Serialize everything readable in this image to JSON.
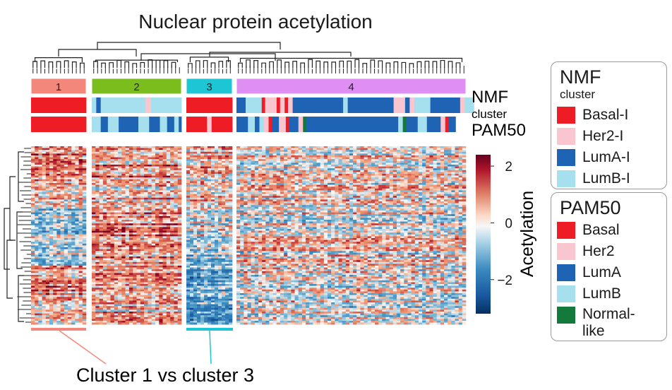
{
  "chart_data": {
    "type": "heatmap",
    "title": "Nuclear protein acetylation",
    "annotation_rows": [
      "NMF cluster",
      "PAM50"
    ],
    "nmf_cluster_labels": [
      "1",
      "2",
      "3",
      "4"
    ],
    "colorbar": {
      "label": "Acetylation",
      "ticks": [
        2,
        0,
        -2
      ],
      "range": [
        -3.2,
        2.4
      ],
      "colors": [
        "#053061",
        "#2166ac",
        "#4393c3",
        "#92c5de",
        "#f7f7f7",
        "#f4a582",
        "#d6604d",
        "#b2182b",
        "#67001f"
      ]
    },
    "clusters": [
      {
        "label": "1",
        "color": "#f4877b",
        "nmf": [
          [
            "Basal-I",
            1
          ]
        ],
        "pam50": [
          [
            "Basal",
            1
          ]
        ]
      },
      {
        "label": "2",
        "color": "#7cbd1e",
        "nmf": [
          [
            "LumB-I",
            0.05
          ],
          [
            "LumA-I",
            0.05
          ],
          [
            "LumB-I",
            0.5
          ],
          [
            "Her2-I",
            0.06
          ],
          [
            "LumB-I",
            0.34
          ]
        ],
        "pam50": [
          [
            "LumB",
            0.1
          ],
          [
            "LumA",
            0.08
          ],
          [
            "LumB",
            0.12
          ],
          [
            "LumA",
            0.22
          ],
          [
            "LumB",
            0.12
          ],
          [
            "LumA",
            0.12
          ],
          [
            "LumB",
            0.08
          ],
          [
            "LumA",
            0.08
          ],
          [
            "LumB",
            0.05
          ],
          [
            "LumA",
            0.03
          ]
        ]
      },
      {
        "label": "3",
        "color": "#1cc6d4",
        "nmf": [
          [
            "Basal-I",
            1
          ]
        ],
        "pam50": [
          [
            "Basal",
            0.45
          ],
          [
            "Her2",
            0.1
          ],
          [
            "Basal",
            0.45
          ]
        ]
      },
      {
        "label": "4",
        "color": "#df8ef4",
        "nmf": [
          [
            "LumA-I",
            0.04
          ],
          [
            "LumB-I",
            0.07
          ],
          [
            "Basal-I",
            0.015
          ],
          [
            "Her2-I",
            0.05
          ],
          [
            "Basal-I",
            0.015
          ],
          [
            "Her2-I",
            0.02
          ],
          [
            "Basal-I",
            0.015
          ],
          [
            "Her2-I",
            0.02
          ],
          [
            "LumA-I",
            0.22
          ],
          [
            "LumB-I",
            0.02
          ],
          [
            "LumA-I",
            0.2
          ],
          [
            "Her2-I",
            0.05
          ],
          [
            "LumA-I",
            0.02
          ],
          [
            "Her2-I",
            0.02
          ],
          [
            "LumB-I",
            0.07
          ],
          [
            "LumA-I",
            0.13
          ],
          [
            "Her2-I",
            0.02
          ],
          [
            "LumB-I",
            0.04
          ]
        ],
        "pam50": [
          [
            "LumA",
            0.05
          ],
          [
            "LumB",
            0.03
          ],
          [
            "LumA",
            0.02
          ],
          [
            "LumB",
            0.02
          ],
          [
            "Her2",
            0.02
          ],
          [
            "Basal",
            0.015
          ],
          [
            "LumA",
            0.03
          ],
          [
            "Her2",
            0.03
          ],
          [
            "Basal",
            0.015
          ],
          [
            "LumA",
            0.04
          ],
          [
            "Her2",
            0.02
          ],
          [
            "Normal-like",
            0.015
          ],
          [
            "LumA",
            0.4
          ],
          [
            "LumB",
            0.02
          ],
          [
            "Normal-like",
            0.015
          ],
          [
            "LumA",
            0.05
          ],
          [
            "LumB",
            0.04
          ],
          [
            "LumA",
            0.06
          ],
          [
            "Her2",
            0.02
          ],
          [
            "Basal",
            0.015
          ],
          [
            "LumA",
            0.03
          ]
        ]
      }
    ],
    "cluster_bands": [
      {
        "cluster": "1",
        "profile": [
          0.9,
          0.6,
          -0.6,
          -0.4,
          1.0,
          0.5
        ]
      },
      {
        "cluster": "2",
        "profile": [
          1.0,
          0.5,
          1.2,
          0.9,
          1.0,
          0.6
        ]
      },
      {
        "cluster": "3",
        "profile": [
          0.5,
          0.3,
          -0.2,
          -0.6,
          -1.3,
          -1.6
        ]
      },
      {
        "cluster": "4",
        "profile": [
          0.0,
          0.2,
          0.0,
          0.1,
          0.0,
          -0.1
        ]
      }
    ],
    "comparison_label": "Cluster 1 vs cluster 3"
  },
  "legend_nmf": {
    "title": "NMF",
    "subtitle": "cluster",
    "items": [
      {
        "label": "Basal-I",
        "color": "#ee1c25"
      },
      {
        "label": "Her2-I",
        "color": "#f9c6d0"
      },
      {
        "label": "LumA-I",
        "color": "#1f63b5"
      },
      {
        "label": "LumB-I",
        "color": "#a6e0ee"
      }
    ]
  },
  "legend_pam50": {
    "title": "PAM50",
    "items": [
      {
        "label": "Basal",
        "color": "#ee1c25"
      },
      {
        "label": "Her2",
        "color": "#f9c6d0"
      },
      {
        "label": "LumA",
        "color": "#1f63b5"
      },
      {
        "label": "LumB",
        "color": "#a6e0ee"
      },
      {
        "label": "Normal-\nlike",
        "color": "#147a3c"
      }
    ]
  },
  "row_labels": {
    "nmf": "NMF",
    "nmf_sub": "cluster",
    "pam50": "PAM50"
  },
  "colors": {
    "Basal": "#ee1c25",
    "Her2": "#f9c6d0",
    "LumA": "#1f63b5",
    "LumB": "#a6e0ee",
    "Normal-like": "#147a3c",
    "Basal-I": "#ee1c25",
    "Her2-I": "#f9c6d0",
    "LumA-I": "#1f63b5",
    "LumB-I": "#a6e0ee"
  }
}
